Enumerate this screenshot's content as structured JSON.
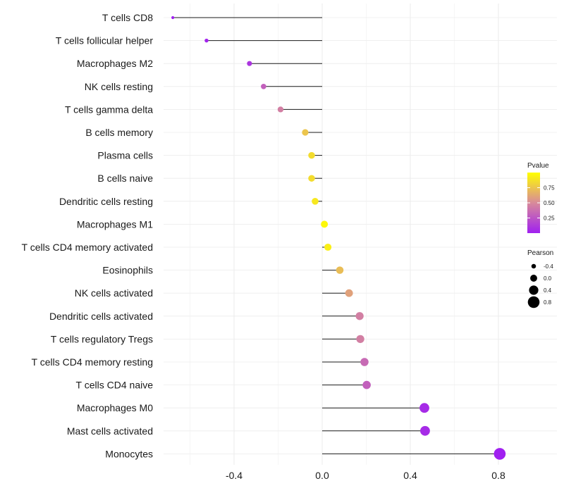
{
  "chart_data": {
    "type": "lollipop",
    "title": "",
    "xlabel": "",
    "ylabel": "",
    "xlim": [
      -0.72,
      0.85
    ],
    "x_ticks": [
      -0.4,
      0.0,
      0.4,
      0.8
    ],
    "x_tick_labels": [
      "-0.4",
      "0.0",
      "0.4",
      "0.8"
    ],
    "grid": true,
    "categories": [
      "T cells CD8",
      "T cells follicular helper",
      "Macrophages M2",
      "NK cells resting",
      "T cells gamma delta",
      "B cells memory",
      "Plasma cells",
      "B cells naive",
      "Dendritic cells resting",
      "Macrophages M1",
      "T cells CD4 memory activated",
      "Eosinophils",
      "NK cells activated",
      "Dendritic cells activated",
      "T cells regulatory  Tregs",
      "T cells CD4 memory resting",
      "T cells CD4 naive",
      "Macrophages M0",
      "Mast cells activated",
      "Monocytes"
    ],
    "pearson": [
      -0.678,
      -0.525,
      -0.33,
      -0.266,
      -0.189,
      -0.077,
      -0.048,
      -0.048,
      -0.032,
      0.01,
      0.026,
      0.08,
      0.122,
      0.17,
      0.173,
      0.192,
      0.202,
      0.464,
      0.467,
      0.806
    ],
    "pvalue": [
      0.0,
      0.02,
      0.1,
      0.3,
      0.45,
      0.75,
      0.85,
      0.85,
      0.9,
      0.97,
      0.93,
      0.72,
      0.6,
      0.45,
      0.45,
      0.35,
      0.3,
      0.05,
      0.05,
      0.0
    ],
    "legend_color": {
      "title": "Pvalue",
      "ticks": [
        0.25,
        0.5,
        0.75
      ],
      "tick_labels": [
        "0.25",
        "0.50",
        "0.75"
      ],
      "range": [
        0.0,
        1.0
      ],
      "low_color": "#a020f0",
      "mid_color": "#d88a9a",
      "high_color": "#ffff00",
      "placement": "right"
    },
    "legend_size": {
      "title": "Pearson",
      "values": [
        -0.4,
        0.0,
        0.4,
        0.8
      ],
      "labels": [
        "-0.4",
        "0.0",
        "0.4",
        "0.8"
      ],
      "placement": "right"
    }
  }
}
